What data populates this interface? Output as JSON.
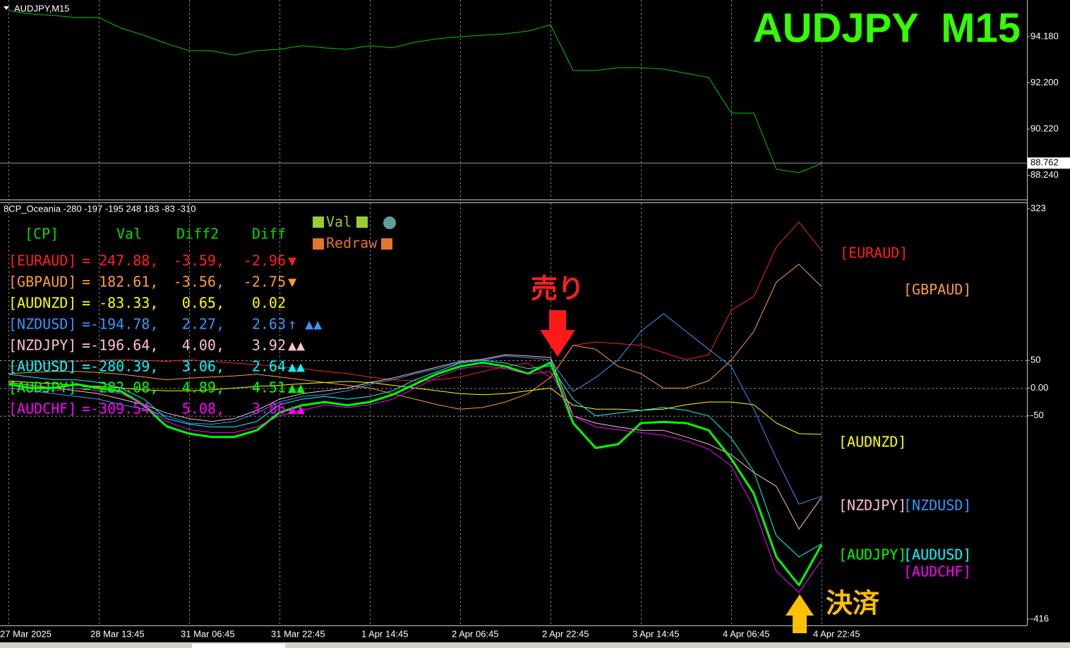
{
  "chart_data": [
    {
      "type": "line",
      "symbol": "AUDJPY,M15",
      "title": "AUDJPY  M15",
      "series": [
        {
          "color": "#00c800",
          "values": [
            95.3,
            95.15,
            95.09,
            95.0,
            95.0,
            94.54,
            94.24,
            93.88,
            93.58,
            93.58,
            93.39,
            93.58,
            93.64,
            93.79,
            93.7,
            93.64,
            93.79,
            93.7,
            93.94,
            94.09,
            94.18,
            94.24,
            94.3,
            94.42,
            94.69,
            92.73,
            92.73,
            92.85,
            92.85,
            92.79,
            92.61,
            92.43,
            90.91,
            90.91,
            88.5,
            88.35,
            88.74
          ]
        }
      ],
      "ylim": [
        87.23,
        95.6
      ],
      "yticks": [
        {
          "value": 94.18,
          "label": "94.180"
        },
        {
          "value": 92.2,
          "label": "92.200"
        },
        {
          "value": 90.22,
          "label": "90.220"
        },
        {
          "value": 88.24,
          "label": "88.240"
        }
      ],
      "price_line": 88.762,
      "grid": true
    },
    {
      "type": "line",
      "title": "8CP_Oceania -280 -197 -195 248 183 -83 -310",
      "categories": [
        "27 Mar 2025",
        null,
        null,
        null,
        "28 Mar 13:45",
        null,
        null,
        null,
        "31 Mar 06:45",
        null,
        null,
        null,
        "31 Mar 22:45",
        null,
        null,
        null,
        "1 Apr 14:45",
        null,
        null,
        null,
        "2 Apr 06:45",
        null,
        null,
        null,
        "2 Apr 22:45",
        null,
        null,
        null,
        "3 Apr 14:45",
        null,
        null,
        null,
        "4 Apr 06:45",
        null,
        null,
        null,
        "4 Apr 22:45"
      ],
      "series": [
        {
          "name": "[EURAUD]",
          "color": "#ff2020",
          "values": [
            39,
            42,
            45,
            48,
            50,
            51,
            50,
            48,
            51,
            48,
            45,
            42,
            39,
            35,
            30,
            26,
            20,
            15,
            13,
            15,
            20,
            30,
            39,
            45,
            19,
            77,
            83,
            80,
            77,
            64,
            51,
            60,
            140,
            165,
            254,
            299,
            247.88
          ]
        },
        {
          "name": "[GBPAUD]",
          "color": "#ff9c3a",
          "values": [
            26,
            28,
            30,
            30,
            28,
            25,
            20,
            15,
            18,
            20,
            22,
            25,
            20,
            15,
            10,
            5,
            0,
            -10,
            -20,
            -30,
            -38,
            -35,
            -25,
            -10,
            19,
            77,
            70,
            39,
            26,
            0,
            0,
            13,
            50,
            102,
            191,
            223,
            182.61
          ]
        },
        {
          "name": "[AUDNZD]",
          "color": "#ffff00",
          "values": [
            13,
            10,
            8,
            5,
            3,
            0,
            -3,
            -5,
            -5,
            -3,
            0,
            3,
            5,
            8,
            10,
            12,
            10,
            5,
            0,
            -5,
            -10,
            -12,
            -10,
            -5,
            0,
            -31,
            -38,
            -38,
            -40,
            -38,
            -30,
            -25,
            -25,
            -30,
            -63,
            -82,
            -83.33
          ]
        },
        {
          "name": "[NZDUSD]",
          "color": "#3399ff",
          "values": [
            0,
            -5,
            -10,
            -15,
            -20,
            -30,
            -38,
            -50,
            -63,
            -65,
            -60,
            -45,
            -25,
            -15,
            -12,
            -5,
            7,
            15,
            26,
            35,
            46,
            50,
            58,
            55,
            51,
            -6,
            19,
            51,
            102,
            134,
            102,
            70,
            39,
            -38,
            -127,
            -209,
            -194.78
          ]
        },
        {
          "name": "[NZDJPY]",
          "color": "#ffc0cb",
          "values": [
            10,
            5,
            0,
            -5,
            -10,
            -20,
            -30,
            -45,
            -55,
            -60,
            -55,
            -40,
            -20,
            -10,
            -5,
            0,
            10,
            18,
            28,
            38,
            48,
            52,
            60,
            58,
            55,
            -50,
            -63,
            -70,
            -76,
            -76,
            -88,
            -101,
            -120,
            -152,
            -177,
            -254,
            -196.64
          ]
        },
        {
          "name": "[AUDUSD]",
          "color": "#00ffff",
          "values": [
            25,
            20,
            15,
            15,
            10,
            0,
            -20,
            -55,
            -65,
            -70,
            -70,
            -60,
            -30,
            -20,
            -15,
            -20,
            -15,
            -5,
            15,
            30,
            45,
            50,
            45,
            35,
            40,
            -20,
            -50,
            -45,
            -40,
            -35,
            -40,
            -50,
            -90,
            -150,
            -266,
            -304,
            -280.39
          ]
        },
        {
          "name": "[AUDJPY]",
          "color": "#00ff00",
          "width": 3,
          "values": [
            7,
            0,
            0,
            7,
            0,
            -6,
            -31,
            -69,
            -82,
            -88,
            -88,
            -76,
            -44,
            -31,
            -25,
            -31,
            -25,
            -12,
            7,
            26,
            39,
            46,
            39,
            26,
            46,
            -63,
            -108,
            -101,
            -63,
            -61,
            -63,
            -76,
            -127,
            -190,
            -304,
            -355,
            -282.08
          ]
        },
        {
          "name": "[AUDCHF]",
          "color": "#ff00ff",
          "values": [
            0,
            -5,
            -5,
            0,
            -5,
            -10,
            -30,
            -60,
            -75,
            -80,
            -80,
            -70,
            -50,
            -40,
            -30,
            -35,
            -30,
            -20,
            0,
            20,
            35,
            40,
            35,
            25,
            30,
            -50,
            -70,
            -75,
            -80,
            -85,
            -95,
            -110,
            -140,
            -215,
            -330,
            -368,
            -309.54
          ]
        }
      ],
      "ylim": [
        -416,
        323
      ],
      "yticks": [
        323,
        50,
        {
          "value": 0,
          "label": "0.00"
        },
        -50,
        -416
      ],
      "grid": true,
      "table": {
        "header": [
          "[CP]",
          "Val",
          "Diff2",
          "Diff"
        ],
        "rows": [
          {
            "val": "= 247.88,",
            "diff2": "-3.59,",
            "diff": "-2.96",
            "mark": "▼"
          },
          {
            "val": "= 182.61,",
            "diff2": "-3.56,",
            "diff": "-2.75",
            "mark": "▼"
          },
          {
            "val": "= -83.33,",
            "diff2": "0.65,",
            "diff": "0.02"
          },
          {
            "val": "=-194.78,",
            "diff2": "2.27,",
            "diff": "2.63",
            "mark": "↑ ▲▲"
          },
          {
            "val": "=-196.64,",
            "diff2": "4.00,",
            "diff": "3.92",
            "mark": "▲▲"
          },
          {
            "val": "=-280.39,",
            "diff2": "3.06,",
            "diff": "2.64",
            "mark": "▲▲"
          },
          {
            "val": "=-282.08,",
            "diff2": "4.89,",
            "diff": "4.51",
            "mark": "▲▲"
          },
          {
            "val": "=-309.54,",
            "diff2": "5.08,",
            "diff": "3.86",
            "mark": "▲▲"
          }
        ]
      },
      "legend_items": [
        "Val",
        "Redraw"
      ],
      "annotations": [
        "売り",
        "決済"
      ]
    }
  ]
}
